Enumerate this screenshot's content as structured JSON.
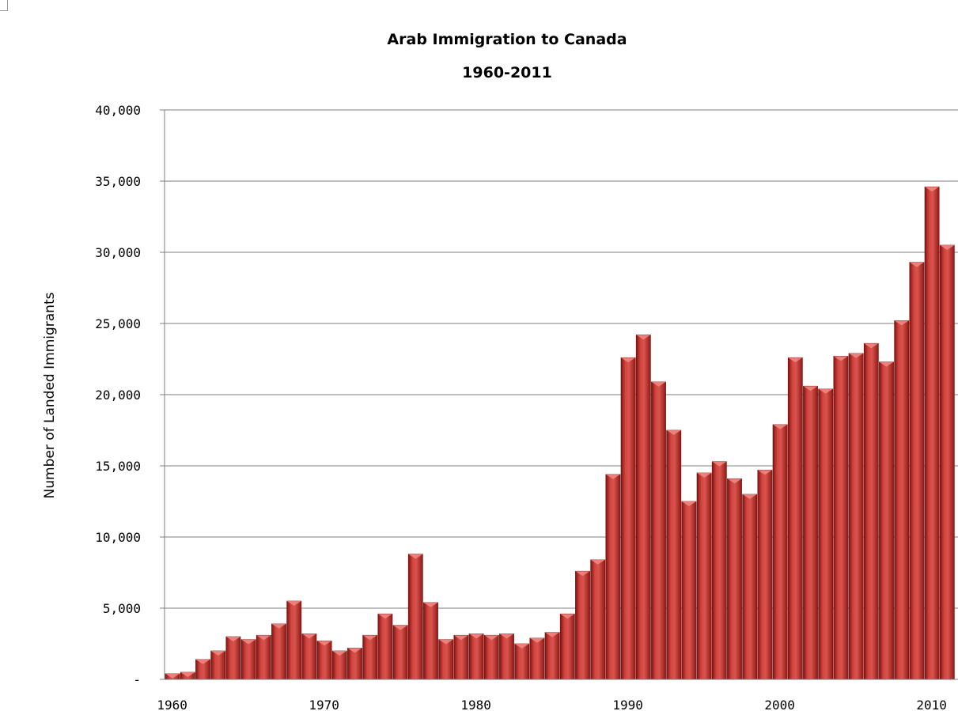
{
  "chart_data": {
    "type": "bar",
    "title_lines": [
      "Arab Immigration to Canada",
      "1960-2011"
    ],
    "xlabel": "",
    "ylabel": "Number of Landed Immigrants",
    "ylim": [
      0,
      40000
    ],
    "yticks": [
      0,
      5000,
      10000,
      15000,
      20000,
      25000,
      30000,
      35000,
      40000
    ],
    "ytick_labels": [
      "-",
      "5,000",
      "10,000",
      "15,000",
      "20,000",
      "25,000",
      "30,000",
      "35,000",
      "40,000"
    ],
    "xtick_labels": [
      "1960",
      "1970",
      "1980",
      "1990",
      "2000",
      "2010"
    ],
    "xtick_years": [
      1960,
      1970,
      1980,
      1990,
      2000,
      2010
    ],
    "grid": true,
    "legend": "none",
    "bar_color": "#c0302b",
    "x": [
      1960,
      1961,
      1962,
      1963,
      1964,
      1965,
      1966,
      1967,
      1968,
      1969,
      1970,
      1971,
      1972,
      1973,
      1974,
      1975,
      1976,
      1977,
      1978,
      1979,
      1980,
      1981,
      1982,
      1983,
      1984,
      1985,
      1986,
      1987,
      1988,
      1989,
      1990,
      1991,
      1992,
      1993,
      1994,
      1995,
      1996,
      1997,
      1998,
      1999,
      2000,
      2001,
      2002,
      2003,
      2004,
      2005,
      2006,
      2007,
      2008,
      2009,
      2010,
      2011
    ],
    "values": [
      400,
      500,
      1400,
      2000,
      3000,
      2800,
      3100,
      3900,
      5500,
      3200,
      2700,
      2000,
      2200,
      3100,
      4600,
      3800,
      8800,
      5400,
      2800,
      3100,
      3200,
      3100,
      3200,
      2500,
      2900,
      3300,
      4600,
      7600,
      8400,
      14400,
      22600,
      24200,
      20900,
      17500,
      12500,
      14500,
      15300,
      14100,
      13000,
      14700,
      17900,
      22600,
      20600,
      20400,
      22700,
      22900,
      23600,
      22300,
      25200,
      29300,
      34600,
      30500
    ]
  }
}
